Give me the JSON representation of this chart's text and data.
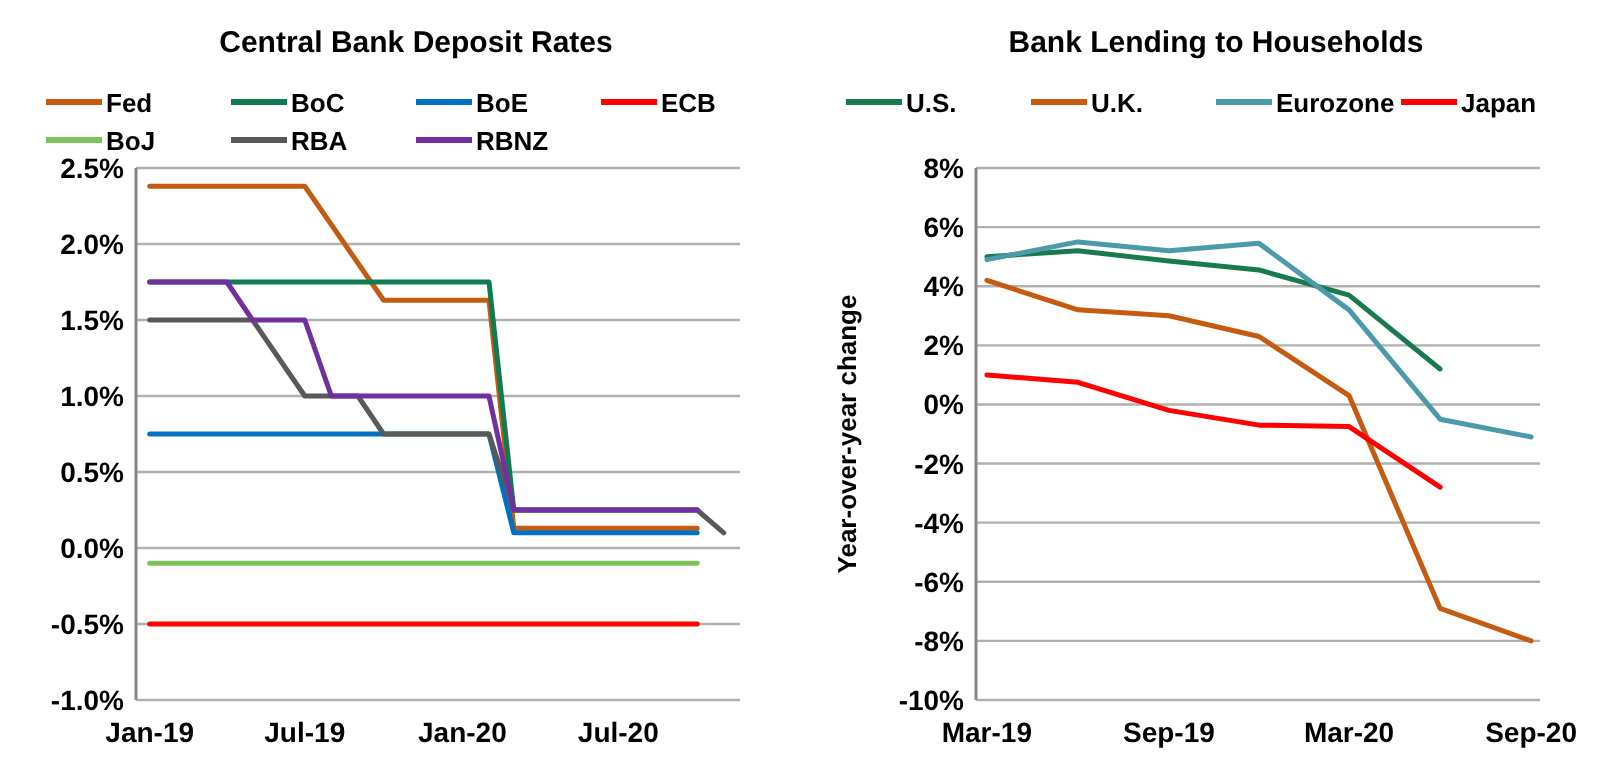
{
  "chart_data": [
    {
      "type": "line",
      "title": "Central Bank Deposit Rates",
      "legend": "top",
      "grid": "y",
      "xlim": [
        "2018-12-16",
        "2020-11-20"
      ],
      "xticks": [
        {
          "value": "2019-01",
          "label": "Jan-19"
        },
        {
          "value": "2019-07",
          "label": "Jul-19"
        },
        {
          "value": "2020-01",
          "label": "Jan-20"
        },
        {
          "value": "2020-07",
          "label": "Jul-20"
        }
      ],
      "ylim": [
        -1.0,
        2.5
      ],
      "yticks": [
        {
          "value": -1.0,
          "label": "-1.0%"
        },
        {
          "value": -0.5,
          "label": "-0.5%"
        },
        {
          "value": 0,
          "label": "0.0%"
        },
        {
          "value": 0.5,
          "label": "0.5%"
        },
        {
          "value": 1.0,
          "label": "1.0%"
        },
        {
          "value": 1.5,
          "label": "1.5%"
        },
        {
          "value": 2.0,
          "label": "2.0%"
        },
        {
          "value": 2.5,
          "label": "2.5%"
        }
      ],
      "series": [
        {
          "name": "Fed",
          "color": "#c55a11",
          "x": [
            "2019-01",
            "2019-07",
            "2019-10",
            "2020-02",
            "2020-03",
            "2020-10"
          ],
          "values": [
            2.38,
            2.38,
            1.63,
            1.63,
            0.13,
            0.13
          ]
        },
        {
          "name": "BoC",
          "color": "#107a50",
          "x": [
            "2019-01",
            "2020-02",
            "2020-03",
            "2020-10"
          ],
          "values": [
            1.75,
            1.75,
            0.25,
            0.25
          ]
        },
        {
          "name": "BoE",
          "color": "#0070c0",
          "x": [
            "2019-01",
            "2020-02",
            "2020-03",
            "2020-10"
          ],
          "values": [
            0.75,
            0.75,
            0.1,
            0.1
          ]
        },
        {
          "name": "ECB",
          "color": "#ff0000",
          "x": [
            "2019-01",
            "2020-10"
          ],
          "values": [
            -0.5,
            -0.5
          ]
        },
        {
          "name": "BoJ",
          "color": "#7cc35a",
          "x": [
            "2019-01",
            "2020-10"
          ],
          "values": [
            -0.1,
            -0.1
          ]
        },
        {
          "name": "RBA",
          "color": "#595959",
          "x": [
            "2019-01",
            "2019-05",
            "2019-07",
            "2019-09",
            "2019-10",
            "2020-02",
            "2020-03",
            "2020-10",
            "2020-11"
          ],
          "values": [
            1.5,
            1.5,
            1.0,
            1.0,
            0.75,
            0.75,
            0.25,
            0.25,
            0.1
          ]
        },
        {
          "name": "RBNZ",
          "color": "#7030a0",
          "x": [
            "2019-01",
            "2019-04",
            "2019-05",
            "2019-07",
            "2019-08",
            "2020-02",
            "2020-03",
            "2020-10"
          ],
          "values": [
            1.75,
            1.75,
            1.5,
            1.5,
            1.0,
            1.0,
            0.25,
            0.25
          ]
        }
      ]
    },
    {
      "type": "line",
      "title": "Bank Lending to Households",
      "ylabel": "Year-over-year change",
      "legend": "top",
      "grid": "y",
      "xlim": [
        "2019-02-18",
        "2020-09-10"
      ],
      "xticks": [
        {
          "value": "2019-03",
          "label": "Mar-19"
        },
        {
          "value": "2019-09",
          "label": "Sep-19"
        },
        {
          "value": "2020-03",
          "label": "Mar-20"
        },
        {
          "value": "2020-09",
          "label": "Sep-20"
        }
      ],
      "ylim": [
        -10,
        8
      ],
      "yticks": [
        {
          "value": -10,
          "label": "-10%"
        },
        {
          "value": -8,
          "label": "-8%"
        },
        {
          "value": -6,
          "label": "-6%"
        },
        {
          "value": -4,
          "label": "-4%"
        },
        {
          "value": -2,
          "label": "-2%"
        },
        {
          "value": 0,
          "label": "0%"
        },
        {
          "value": 2,
          "label": "2%"
        },
        {
          "value": 4,
          "label": "4%"
        },
        {
          "value": 6,
          "label": "6%"
        },
        {
          "value": 8,
          "label": "8%"
        }
      ],
      "series": [
        {
          "name": "U.S.",
          "color": "#1a7a4f",
          "x": [
            "2019-03",
            "2019-06",
            "2019-09",
            "2019-12",
            "2020-03",
            "2020-06"
          ],
          "values": [
            5.0,
            5.2,
            4.85,
            4.55,
            3.7,
            1.2
          ]
        },
        {
          "name": "U.K.",
          "color": "#c55a11",
          "x": [
            "2019-03",
            "2019-06",
            "2019-09",
            "2019-12",
            "2020-03",
            "2020-06",
            "2020-09"
          ],
          "values": [
            4.2,
            3.2,
            3.0,
            2.3,
            0.3,
            -6.9,
            -8.0
          ]
        },
        {
          "name": "Eurozone",
          "color": "#4a9aaa",
          "x": [
            "2019-03",
            "2019-06",
            "2019-09",
            "2019-12",
            "2020-03",
            "2020-06",
            "2020-09"
          ],
          "values": [
            4.9,
            5.5,
            5.2,
            5.45,
            3.2,
            -0.5,
            -1.1
          ]
        },
        {
          "name": "Japan",
          "color": "#ff0000",
          "x": [
            "2019-03",
            "2019-06",
            "2019-09",
            "2019-12",
            "2020-03",
            "2020-06"
          ],
          "values": [
            1.0,
            0.75,
            -0.2,
            -0.7,
            -0.75,
            -2.8
          ]
        }
      ]
    }
  ]
}
